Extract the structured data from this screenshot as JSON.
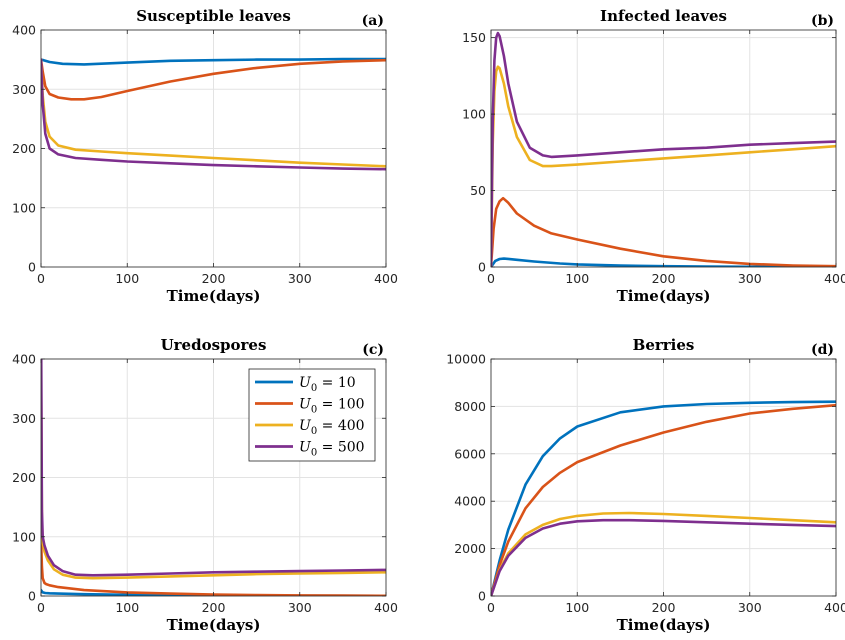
{
  "chart_data": [
    {
      "panel": "(a)",
      "type": "line",
      "title": "Susceptible leaves",
      "xlabel": "Time(days)",
      "ylabel": "",
      "xlim": [
        0,
        400
      ],
      "ylim": [
        0,
        400
      ],
      "xticks": [
        0,
        100,
        200,
        300,
        400
      ],
      "yticks": [
        0,
        100,
        200,
        300,
        400
      ],
      "grid": true,
      "series": [
        {
          "name": "U_0 = 10",
          "color": "#0072BD",
          "x": [
            0,
            3,
            10,
            25,
            50,
            100,
            150,
            200,
            250,
            300,
            350,
            400
          ],
          "y": [
            350,
            349,
            346,
            343,
            342,
            345,
            348,
            349,
            350,
            350,
            351,
            351
          ]
        },
        {
          "name": "U_0 = 100",
          "color": "#D95319",
          "x": [
            0,
            2,
            5,
            10,
            20,
            35,
            50,
            70,
            100,
            150,
            200,
            250,
            300,
            350,
            400
          ],
          "y": [
            350,
            330,
            305,
            292,
            286,
            283,
            283,
            287,
            297,
            313,
            326,
            336,
            343,
            347,
            349
          ]
        },
        {
          "name": "U_0 = 400",
          "color": "#EDB120",
          "x": [
            0,
            2,
            5,
            10,
            20,
            40,
            70,
            100,
            150,
            200,
            250,
            300,
            350,
            400
          ],
          "y": [
            350,
            290,
            245,
            220,
            205,
            198,
            195,
            192,
            188,
            184,
            180,
            176,
            173,
            170
          ]
        },
        {
          "name": "U_0 = 500",
          "color": "#7E2F8E",
          "x": [
            0,
            2,
            5,
            10,
            20,
            40,
            70,
            100,
            150,
            200,
            250,
            300,
            350,
            400
          ],
          "y": [
            350,
            275,
            225,
            200,
            190,
            184,
            181,
            178,
            175,
            172,
            170,
            168,
            166,
            165
          ]
        }
      ]
    },
    {
      "panel": "(b)",
      "type": "line",
      "title": "Infected leaves",
      "xlabel": "Time(days)",
      "ylabel": "",
      "xlim": [
        0,
        400
      ],
      "ylim": [
        0,
        155
      ],
      "xticks": [
        0,
        100,
        200,
        300,
        400
      ],
      "yticks": [
        0,
        50,
        100,
        150
      ],
      "grid": true,
      "series": [
        {
          "name": "U_0 = 10",
          "color": "#0072BD",
          "x": [
            0,
            5,
            10,
            15,
            20,
            30,
            50,
            80,
            100,
            150,
            200,
            250,
            300,
            350,
            400
          ],
          "y": [
            0,
            4,
            5.2,
            5.5,
            5.3,
            4.7,
            3.6,
            2.3,
            1.7,
            0.9,
            0.5,
            0.3,
            0.15,
            0.1,
            0.05
          ]
        },
        {
          "name": "U_0 = 100",
          "color": "#D95319",
          "x": [
            0,
            3,
            6,
            10,
            14,
            20,
            30,
            50,
            70,
            100,
            150,
            200,
            250,
            300,
            350,
            400
          ],
          "y": [
            0,
            25,
            38,
            43,
            45,
            42,
            35,
            27,
            22,
            18,
            12,
            7,
            4,
            2,
            1,
            0.5
          ]
        },
        {
          "name": "U_0 = 400",
          "color": "#EDB120",
          "x": [
            0,
            2,
            4,
            6,
            8,
            10,
            15,
            20,
            30,
            45,
            60,
            70,
            100,
            150,
            200,
            250,
            300,
            350,
            400
          ],
          "y": [
            0,
            80,
            115,
            128,
            131,
            130,
            120,
            105,
            85,
            70,
            66,
            66,
            67,
            69,
            71,
            73,
            75,
            77,
            79
          ]
        },
        {
          "name": "U_0 = 500",
          "color": "#7E2F8E",
          "x": [
            0,
            2,
            4,
            6,
            8,
            10,
            15,
            20,
            30,
            45,
            60,
            70,
            100,
            150,
            200,
            250,
            300,
            350,
            400
          ],
          "y": [
            0,
            95,
            135,
            150,
            153,
            151,
            138,
            120,
            95,
            78,
            73,
            72,
            73,
            75,
            77,
            78,
            80,
            81,
            82
          ]
        }
      ]
    },
    {
      "panel": "(c)",
      "type": "line",
      "title": "Uredospores",
      "xlabel": "Time(days)",
      "ylabel": "",
      "xlim": [
        0,
        400
      ],
      "ylim": [
        0,
        400
      ],
      "xticks": [
        0,
        100,
        200,
        300,
        400
      ],
      "yticks": [
        0,
        100,
        200,
        300,
        400
      ],
      "grid": true,
      "legend": "top-right",
      "series": [
        {
          "name": "U_0 = 10",
          "color": "#0072BD",
          "x": [
            0,
            2,
            5,
            10,
            20,
            50,
            100,
            200,
            300,
            400
          ],
          "y": [
            10,
            6,
            5,
            4.5,
            4,
            3,
            2,
            1,
            0.5,
            0.3
          ]
        },
        {
          "name": "U_0 = 100",
          "color": "#D95319",
          "x": [
            0,
            1,
            2,
            4,
            6,
            10,
            20,
            50,
            100,
            150,
            200,
            250,
            300,
            350,
            400
          ],
          "y": [
            100,
            50,
            30,
            22,
            20,
            18,
            15,
            10,
            6,
            4,
            2.5,
            1.5,
            1,
            0.6,
            0.3
          ]
        },
        {
          "name": "U_0 = 400",
          "color": "#EDB120",
          "x": [
            0,
            1,
            2,
            4,
            8,
            15,
            25,
            40,
            60,
            100,
            150,
            200,
            250,
            300,
            350,
            400
          ],
          "y": [
            400,
            130,
            90,
            75,
            60,
            45,
            36,
            31,
            30,
            31,
            33,
            35,
            37,
            38,
            39,
            40
          ]
        },
        {
          "name": "U_0 = 500",
          "color": "#7E2F8E",
          "x": [
            0,
            1,
            2,
            4,
            8,
            15,
            25,
            40,
            60,
            100,
            150,
            200,
            250,
            300,
            350,
            400
          ],
          "y": [
            500,
            145,
            100,
            85,
            68,
            52,
            42,
            36,
            35,
            36,
            38,
            40,
            41,
            42,
            43,
            44
          ]
        }
      ]
    },
    {
      "panel": "(d)",
      "type": "line",
      "title": "Berries",
      "xlabel": "Time(days)",
      "ylabel": "",
      "xlim": [
        0,
        400
      ],
      "ylim": [
        0,
        10000
      ],
      "xticks": [
        0,
        100,
        200,
        300,
        400
      ],
      "yticks": [
        0,
        2000,
        4000,
        6000,
        8000,
        10000
      ],
      "grid": true,
      "series": [
        {
          "name": "U_0 = 10",
          "color": "#0072BD",
          "x": [
            0,
            10,
            20,
            40,
            60,
            80,
            100,
            150,
            200,
            250,
            300,
            350,
            400
          ],
          "y": [
            0,
            1500,
            2800,
            4700,
            5900,
            6650,
            7150,
            7750,
            8000,
            8100,
            8150,
            8180,
            8200
          ]
        },
        {
          "name": "U_0 = 100",
          "color": "#D95319",
          "x": [
            0,
            10,
            20,
            40,
            60,
            80,
            100,
            150,
            200,
            250,
            300,
            350,
            400
          ],
          "y": [
            0,
            1300,
            2300,
            3700,
            4600,
            5200,
            5650,
            6350,
            6900,
            7350,
            7700,
            7900,
            8050
          ]
        },
        {
          "name": "U_0 = 400",
          "color": "#EDB120",
          "x": [
            0,
            10,
            20,
            40,
            60,
            80,
            100,
            130,
            160,
            200,
            250,
            300,
            350,
            400
          ],
          "y": [
            0,
            1100,
            1800,
            2600,
            3000,
            3250,
            3380,
            3480,
            3500,
            3460,
            3380,
            3290,
            3200,
            3110
          ]
        },
        {
          "name": "U_0 = 500",
          "color": "#7E2F8E",
          "x": [
            0,
            10,
            20,
            40,
            60,
            80,
            100,
            130,
            160,
            200,
            250,
            300,
            350,
            400
          ],
          "y": [
            0,
            1050,
            1700,
            2450,
            2850,
            3050,
            3150,
            3200,
            3200,
            3170,
            3110,
            3050,
            3000,
            2950
          ]
        }
      ]
    }
  ]
}
